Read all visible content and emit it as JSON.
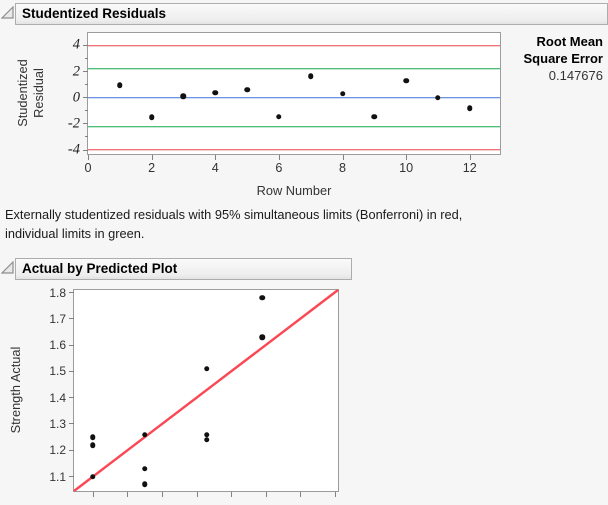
{
  "colors": {
    "limit_red": "#e8434f",
    "limit_green": "#17a74b",
    "zero_blue": "#3f74d8",
    "fit_red": "#fb4753",
    "point_black": "#111111"
  },
  "panel_residuals": {
    "title": "Studentized Residuals",
    "rmse_label_line1": "Root Mean",
    "rmse_label_line2": "Square Error",
    "rmse_value": "0.147676",
    "note": "Externally studentized residuals with 95% simultaneous limits (Bonferroni) in red, individual limits in green."
  },
  "panel_actual": {
    "title": "Actual by Predicted Plot"
  },
  "chart_data": [
    {
      "type": "scatter",
      "title": "Studentized Residuals",
      "xlabel": "Row Number",
      "ylabel": "Studentized Residual",
      "x": [
        1,
        2,
        3,
        4,
        5,
        6,
        7,
        8,
        9,
        10,
        11,
        12
      ],
      "y": [
        0.95,
        -1.5,
        0.1,
        0.4,
        0.6,
        -1.45,
        1.65,
        0.3,
        -1.45,
        1.3,
        0.0,
        -0.8
      ],
      "xlim": [
        0,
        12.95
      ],
      "ylim": [
        -4.3,
        4.95
      ],
      "xticks": [
        0,
        2,
        4,
        6,
        8,
        10,
        12
      ],
      "yticks": [
        4,
        2,
        0,
        -2,
        -4
      ],
      "yticks_minor": [
        3,
        1,
        -1,
        -3
      ],
      "grid": false,
      "legend": "none",
      "reference_lines": [
        {
          "value": 3.96,
          "color_key": "limit_red",
          "meaning": "95% simultaneous limit (Bonferroni)"
        },
        {
          "value": 2.23,
          "color_key": "limit_green",
          "meaning": "95% individual limit"
        },
        {
          "value": 0,
          "color_key": "zero_blue",
          "meaning": "zero line"
        },
        {
          "value": -2.23,
          "color_key": "limit_green",
          "meaning": "95% individual limit"
        },
        {
          "value": -3.96,
          "color_key": "limit_red",
          "meaning": "95% simultaneous limit (Bonferroni)"
        }
      ]
    },
    {
      "type": "scatter",
      "title": "Actual by Predicted Plot",
      "ylabel": "Strength Actual",
      "points": [
        [
          1.1,
          1.1
        ],
        [
          1.1,
          1.22
        ],
        [
          1.1,
          1.25
        ],
        [
          1.25,
          1.07
        ],
        [
          1.25,
          1.13
        ],
        [
          1.25,
          1.26
        ],
        [
          1.43,
          1.24
        ],
        [
          1.43,
          1.26
        ],
        [
          1.43,
          1.51
        ],
        [
          1.59,
          1.63
        ],
        [
          1.59,
          1.78
        ]
      ],
      "xlim": [
        1.045,
        1.81
      ],
      "ylim": [
        1.045,
        1.81
      ],
      "yticks": [
        1.8,
        1.7,
        1.6,
        1.5,
        1.4,
        1.3,
        1.2,
        1.1
      ],
      "xticks": [
        1.1,
        1.2,
        1.3,
        1.4,
        1.5,
        1.6,
        1.7,
        1.8
      ],
      "xtick_labels_visible": false,
      "grid": false,
      "legend": "none",
      "diagonal_line": {
        "from": [
          1.045,
          1.045
        ],
        "to": [
          1.81,
          1.81
        ],
        "color_key": "fit_red",
        "meaning": "identity line actual = predicted"
      }
    }
  ]
}
